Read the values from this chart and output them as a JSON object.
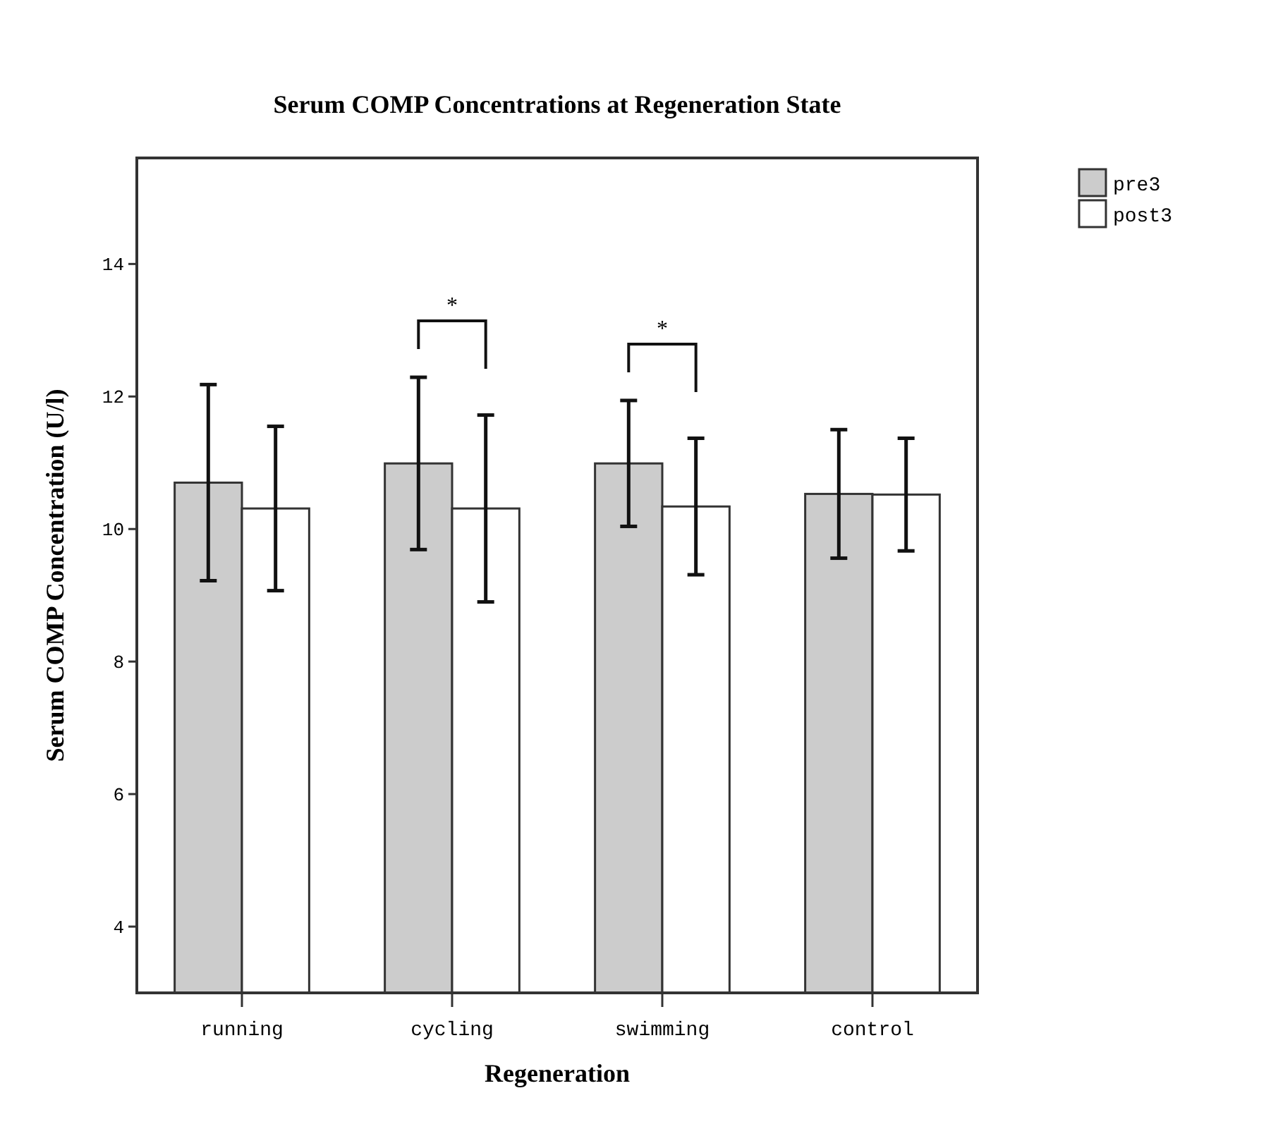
{
  "chart_data": {
    "type": "bar",
    "title": "Serum COMP Concentrations at Regeneration State",
    "xlabel": "Regeneration",
    "ylabel": "Serum COMP Concentration (U/l)",
    "categories": [
      "running",
      "cycling",
      "swimming",
      "control"
    ],
    "series": [
      {
        "name": "pre3",
        "color": "#cccccc",
        "values": [
          10.7,
          10.99,
          10.99,
          10.53
        ],
        "errors": [
          1.48,
          1.3,
          0.95,
          0.97
        ]
      },
      {
        "name": "post3",
        "color": "#ffffff",
        "values": [
          10.31,
          10.31,
          10.34,
          10.52
        ],
        "errors": [
          1.24,
          1.41,
          1.03,
          0.85
        ]
      }
    ],
    "ylim": [
      3,
      15.6
    ],
    "yticks": [
      4,
      6,
      8,
      10,
      12,
      14
    ],
    "grid": false,
    "legend": "top right",
    "annotations": [
      "*",
      "*"
    ]
  }
}
